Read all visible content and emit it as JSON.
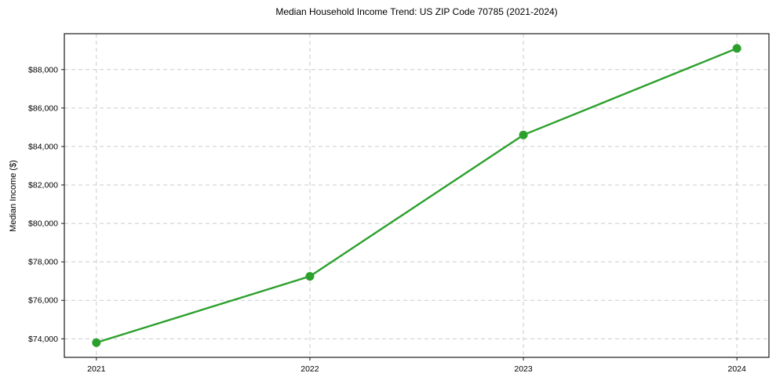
{
  "chart_data": {
    "type": "line",
    "title": "Median Household Income Trend: US ZIP Code 70785 (2021-2024)",
    "xlabel": "",
    "ylabel": "Median Income ($)",
    "x": [
      2021,
      2022,
      2023,
      2024
    ],
    "x_tick_labels": [
      "2021",
      "2022",
      "2023",
      "2024"
    ],
    "y_ticks": [
      74000,
      76000,
      78000,
      80000,
      82000,
      84000,
      86000,
      88000
    ],
    "y_tick_labels": [
      "$74,000",
      "$76,000",
      "$78,000",
      "$80,000",
      "$82,000",
      "$84,000",
      "$86,000",
      "$88,000"
    ],
    "series": [
      {
        "name": "median_household_income",
        "values": [
          73800,
          77250,
          84600,
          89100
        ]
      }
    ],
    "xlim": [
      2020.85,
      2024.15
    ],
    "ylim": [
      73035,
      89865
    ],
    "grid": true,
    "grid_style": "dashed",
    "legend_position": "none",
    "marker": "circle",
    "colors": {
      "line": "#2ca02c",
      "marker": "#2ca02c",
      "grid": "#cccccc",
      "spine": "#1a1a1a",
      "tick": "#1a1a1a",
      "text": "#000000",
      "background": "#ffffff"
    }
  }
}
